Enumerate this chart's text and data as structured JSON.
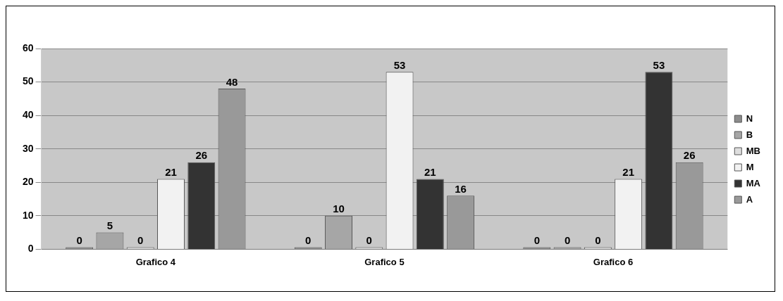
{
  "chart_data": {
    "type": "bar",
    "categories": [
      "Grafico 4",
      "Grafico 5",
      "Grafico 6"
    ],
    "series": [
      {
        "name": "N",
        "color": "#8c8c8c",
        "values": [
          0,
          0,
          0
        ]
      },
      {
        "name": "B",
        "color": "#a6a6a6",
        "values": [
          5,
          10,
          0
        ]
      },
      {
        "name": "MB",
        "color": "#dedede",
        "values": [
          0,
          0,
          0
        ]
      },
      {
        "name": "M",
        "color": "#f2f2f2",
        "values": [
          21,
          53,
          21
        ]
      },
      {
        "name": "MA",
        "color": "#333333",
        "values": [
          26,
          21,
          53
        ]
      },
      {
        "name": "A",
        "color": "#999999",
        "values": [
          48,
          16,
          26
        ]
      }
    ],
    "ylim": [
      0,
      60
    ],
    "yticks": [
      0,
      10,
      20,
      30,
      40,
      50,
      60
    ],
    "grid": "y",
    "legend": "right",
    "data_labels": true
  }
}
